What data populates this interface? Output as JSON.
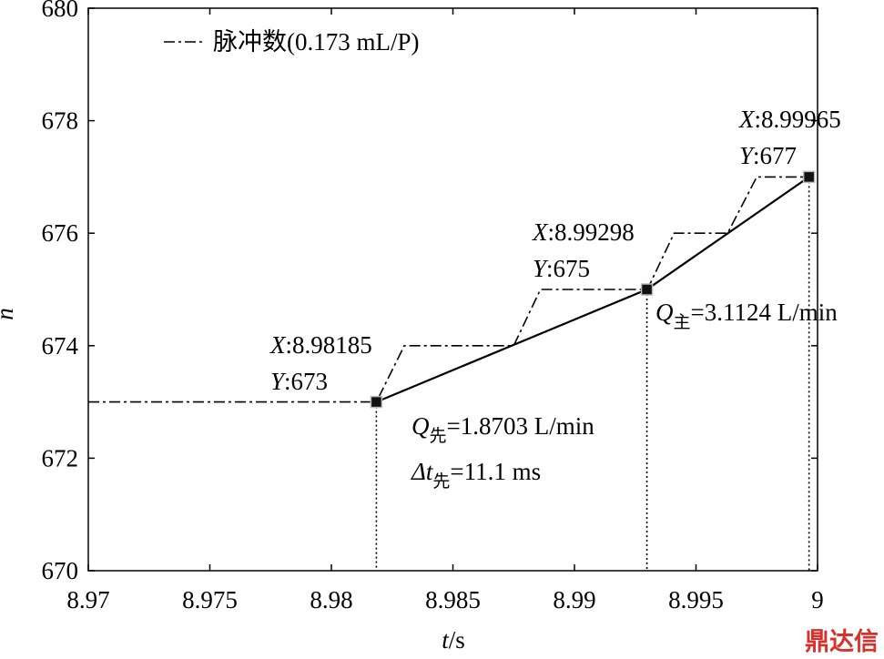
{
  "chart_data": {
    "type": "line",
    "xlabel": {
      "symbol": "t",
      "text": "/s"
    },
    "ylabel": "n",
    "xlim": [
      8.97,
      9
    ],
    "xticks": [
      8.97,
      8.975,
      8.98,
      8.985,
      8.99,
      8.995,
      9
    ],
    "ylim": [
      670,
      680
    ],
    "yticks": [
      670,
      672,
      674,
      676,
      678,
      680
    ],
    "legend": "upper left",
    "series": [
      {
        "name": "脉冲数(0.173 mL/P)",
        "color": "#000000",
        "dash": "dashdot",
        "x": [
          8.97,
          8.98185,
          8.983,
          8.9875,
          8.9886,
          8.993,
          8.9941,
          8.9963,
          8.9975,
          8.99965
        ],
        "values": [
          673,
          673,
          674,
          674,
          675,
          675,
          676,
          676,
          677,
          677
        ]
      },
      {
        "color": "#000000",
        "dash": "solid",
        "markers": true,
        "x": [
          8.98185,
          8.99298,
          8.99965
        ],
        "values": [
          673,
          675,
          677
        ]
      }
    ],
    "datatips": [
      {
        "x_name": "X",
        "x_text": ":8.98185",
        "y_name": "Y",
        "y_text": ":673"
      },
      {
        "x_name": "X",
        "x_text": ":8.99298",
        "y_name": "Y",
        "y_text": ":675"
      },
      {
        "x_name": "X",
        "x_text": ":8.99965",
        "y_name": "Y",
        "y_text": ":677"
      }
    ],
    "annotations": [
      {
        "symbol": "Q",
        "subscript": "先",
        "text": "=1.8703 L/min"
      },
      {
        "symbol": "Δt",
        "subscript": "先",
        "text": "=11.1 ms"
      },
      {
        "symbol": "Q",
        "subscript": "主",
        "text": "=3.1124 L/min"
      }
    ],
    "watermark": "鼎达信"
  }
}
